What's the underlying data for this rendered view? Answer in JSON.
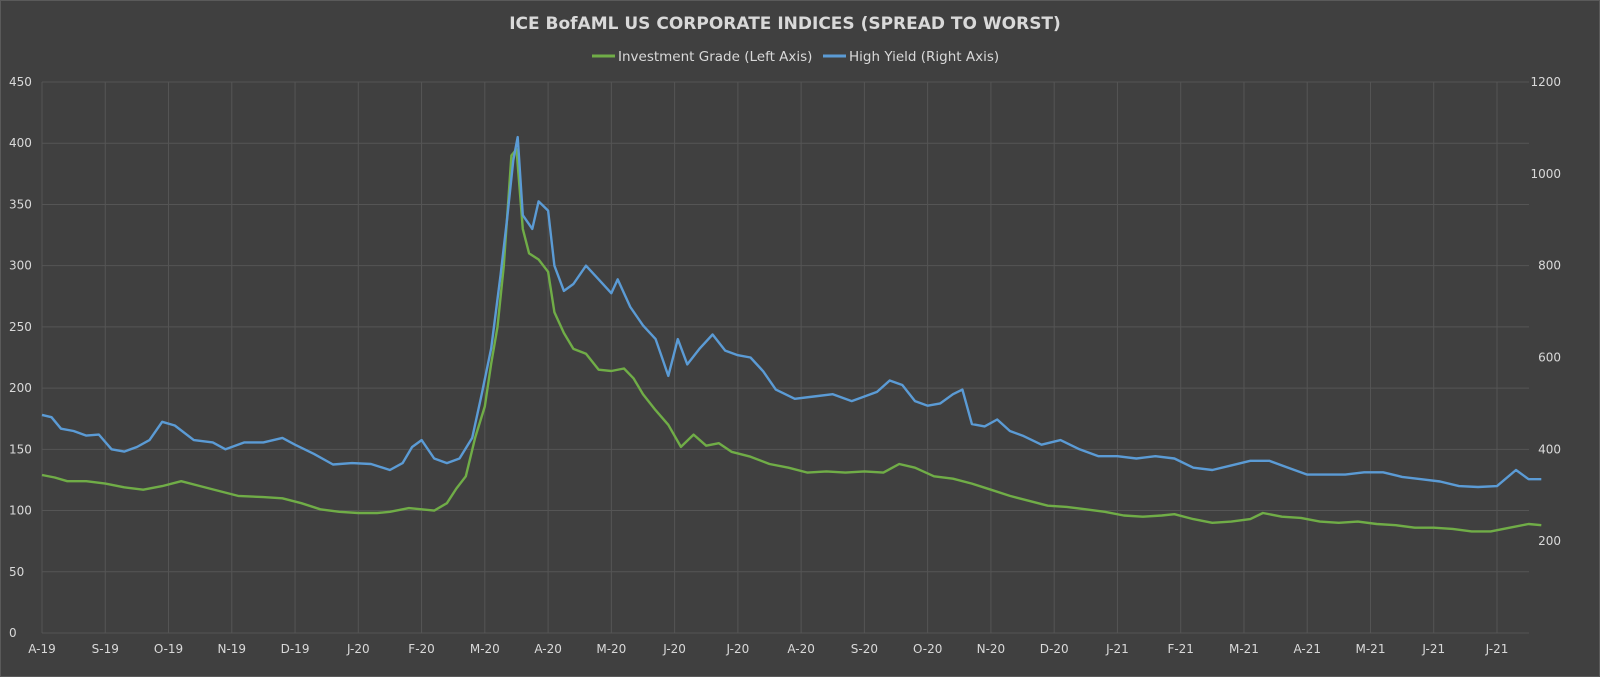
{
  "chart_data": {
    "type": "line",
    "title": "ICE BofAML US CORPORATE INDICES (SPREAD TO WORST)",
    "grid": true,
    "legend_position": "top-center",
    "x_tick_labels": [
      "A-19",
      "S-19",
      "O-19",
      "N-19",
      "D-19",
      "J-20",
      "F-20",
      "M-20",
      "A-20",
      "M-20",
      "J-20",
      "J-20",
      "A-20",
      "S-20",
      "O-20",
      "N-20",
      "D-20",
      "J-21",
      "F-21",
      "M-21",
      "A-21",
      "M-21",
      "J-21",
      "J-21"
    ],
    "y_left": {
      "min": 0,
      "max": 450,
      "ticks": [
        0,
        50,
        100,
        150,
        200,
        250,
        300,
        350,
        400,
        450
      ]
    },
    "y_right": {
      "min": 0,
      "max": 1200,
      "ticks": [
        200,
        400,
        600,
        800,
        1000,
        1200
      ]
    },
    "series": [
      {
        "name": "Investment Grade (Left Axis)",
        "axis": "left",
        "color": "#70ad47",
        "points": [
          [
            0,
            129
          ],
          [
            0.2,
            127
          ],
          [
            0.4,
            124
          ],
          [
            0.7,
            124
          ],
          [
            1.0,
            122
          ],
          [
            1.3,
            119
          ],
          [
            1.6,
            117
          ],
          [
            1.9,
            120
          ],
          [
            2.2,
            124
          ],
          [
            2.5,
            120
          ],
          [
            2.8,
            116
          ],
          [
            3.1,
            112
          ],
          [
            3.5,
            111
          ],
          [
            3.8,
            110
          ],
          [
            4.1,
            106
          ],
          [
            4.4,
            101
          ],
          [
            4.7,
            99
          ],
          [
            5.0,
            98
          ],
          [
            5.3,
            98
          ],
          [
            5.5,
            99
          ],
          [
            5.8,
            102
          ],
          [
            6.0,
            101
          ],
          [
            6.2,
            100
          ],
          [
            6.4,
            106
          ],
          [
            6.55,
            118
          ],
          [
            6.7,
            128
          ],
          [
            6.85,
            160
          ],
          [
            7.0,
            185
          ],
          [
            7.1,
            220
          ],
          [
            7.2,
            250
          ],
          [
            7.3,
            300
          ],
          [
            7.42,
            390
          ],
          [
            7.5,
            395
          ],
          [
            7.6,
            330
          ],
          [
            7.7,
            310
          ],
          [
            7.85,
            305
          ],
          [
            8.0,
            295
          ],
          [
            8.1,
            262
          ],
          [
            8.25,
            245
          ],
          [
            8.4,
            232
          ],
          [
            8.6,
            228
          ],
          [
            8.8,
            215
          ],
          [
            9.0,
            214
          ],
          [
            9.2,
            216
          ],
          [
            9.35,
            208
          ],
          [
            9.5,
            195
          ],
          [
            9.7,
            182
          ],
          [
            9.9,
            170
          ],
          [
            10.1,
            152
          ],
          [
            10.3,
            162
          ],
          [
            10.5,
            153
          ],
          [
            10.7,
            155
          ],
          [
            10.9,
            148
          ],
          [
            11.2,
            144
          ],
          [
            11.5,
            138
          ],
          [
            11.8,
            135
          ],
          [
            12.1,
            131
          ],
          [
            12.4,
            132
          ],
          [
            12.7,
            131
          ],
          [
            13.0,
            132
          ],
          [
            13.3,
            131
          ],
          [
            13.55,
            138
          ],
          [
            13.8,
            135
          ],
          [
            14.1,
            128
          ],
          [
            14.4,
            126
          ],
          [
            14.7,
            122
          ],
          [
            15.0,
            117
          ],
          [
            15.3,
            112
          ],
          [
            15.6,
            108
          ],
          [
            15.9,
            104
          ],
          [
            16.2,
            103
          ],
          [
            16.5,
            101
          ],
          [
            16.8,
            99
          ],
          [
            17.1,
            96
          ],
          [
            17.4,
            95
          ],
          [
            17.7,
            96
          ],
          [
            17.9,
            97
          ],
          [
            18.2,
            93
          ],
          [
            18.5,
            90
          ],
          [
            18.8,
            91
          ],
          [
            19.1,
            93
          ],
          [
            19.3,
            98
          ],
          [
            19.6,
            95
          ],
          [
            19.9,
            94
          ],
          [
            20.2,
            91
          ],
          [
            20.5,
            90
          ],
          [
            20.8,
            91
          ],
          [
            21.1,
            89
          ],
          [
            21.4,
            88
          ],
          [
            21.7,
            86
          ],
          [
            22.0,
            86
          ],
          [
            22.3,
            85
          ],
          [
            22.6,
            83
          ],
          [
            22.9,
            83
          ],
          [
            23.2,
            86
          ],
          [
            23.5,
            89
          ],
          [
            23.7,
            88
          ]
        ]
      },
      {
        "name": "High Yield (Right Axis)",
        "axis": "right",
        "color": "#5b9bd5",
        "points": [
          [
            0,
            475
          ],
          [
            0.15,
            470
          ],
          [
            0.3,
            445
          ],
          [
            0.5,
            440
          ],
          [
            0.7,
            430
          ],
          [
            0.9,
            432
          ],
          [
            1.1,
            400
          ],
          [
            1.3,
            395
          ],
          [
            1.5,
            405
          ],
          [
            1.7,
            420
          ],
          [
            1.9,
            460
          ],
          [
            2.1,
            452
          ],
          [
            2.4,
            420
          ],
          [
            2.7,
            415
          ],
          [
            2.9,
            400
          ],
          [
            3.2,
            415
          ],
          [
            3.5,
            415
          ],
          [
            3.8,
            425
          ],
          [
            4.0,
            410
          ],
          [
            4.3,
            390
          ],
          [
            4.6,
            367
          ],
          [
            4.9,
            370
          ],
          [
            5.2,
            368
          ],
          [
            5.5,
            355
          ],
          [
            5.7,
            370
          ],
          [
            5.85,
            405
          ],
          [
            6.0,
            420
          ],
          [
            6.2,
            380
          ],
          [
            6.4,
            370
          ],
          [
            6.6,
            380
          ],
          [
            6.8,
            425
          ],
          [
            6.95,
            520
          ],
          [
            7.1,
            620
          ],
          [
            7.25,
            780
          ],
          [
            7.35,
            900
          ],
          [
            7.45,
            1030
          ],
          [
            7.52,
            1080
          ],
          [
            7.6,
            910
          ],
          [
            7.75,
            880
          ],
          [
            7.85,
            940
          ],
          [
            8.0,
            920
          ],
          [
            8.1,
            800
          ],
          [
            8.25,
            745
          ],
          [
            8.4,
            760
          ],
          [
            8.6,
            800
          ],
          [
            8.8,
            770
          ],
          [
            9.0,
            740
          ],
          [
            9.1,
            770
          ],
          [
            9.3,
            710
          ],
          [
            9.5,
            670
          ],
          [
            9.7,
            640
          ],
          [
            9.8,
            600
          ],
          [
            9.9,
            560
          ],
          [
            10.05,
            640
          ],
          [
            10.2,
            585
          ],
          [
            10.4,
            620
          ],
          [
            10.6,
            650
          ],
          [
            10.8,
            615
          ],
          [
            11.0,
            605
          ],
          [
            11.2,
            600
          ],
          [
            11.4,
            570
          ],
          [
            11.6,
            530
          ],
          [
            11.9,
            510
          ],
          [
            12.2,
            515
          ],
          [
            12.5,
            520
          ],
          [
            12.8,
            505
          ],
          [
            13.0,
            515
          ],
          [
            13.2,
            525
          ],
          [
            13.4,
            550
          ],
          [
            13.6,
            540
          ],
          [
            13.8,
            505
          ],
          [
            14.0,
            495
          ],
          [
            14.2,
            500
          ],
          [
            14.4,
            520
          ],
          [
            14.55,
            530
          ],
          [
            14.7,
            455
          ],
          [
            14.9,
            450
          ],
          [
            15.1,
            465
          ],
          [
            15.3,
            440
          ],
          [
            15.5,
            430
          ],
          [
            15.8,
            410
          ],
          [
            16.1,
            420
          ],
          [
            16.4,
            400
          ],
          [
            16.7,
            385
          ],
          [
            17.0,
            385
          ],
          [
            17.3,
            380
          ],
          [
            17.6,
            385
          ],
          [
            17.9,
            380
          ],
          [
            18.2,
            360
          ],
          [
            18.5,
            355
          ],
          [
            18.8,
            365
          ],
          [
            19.1,
            375
          ],
          [
            19.4,
            375
          ],
          [
            19.7,
            360
          ],
          [
            20.0,
            345
          ],
          [
            20.3,
            345
          ],
          [
            20.6,
            345
          ],
          [
            20.9,
            350
          ],
          [
            21.2,
            350
          ],
          [
            21.5,
            340
          ],
          [
            21.8,
            335
          ],
          [
            22.1,
            330
          ],
          [
            22.4,
            320
          ],
          [
            22.7,
            318
          ],
          [
            23.0,
            320
          ],
          [
            23.3,
            355
          ],
          [
            23.5,
            335
          ],
          [
            23.7,
            335
          ]
        ]
      }
    ]
  }
}
